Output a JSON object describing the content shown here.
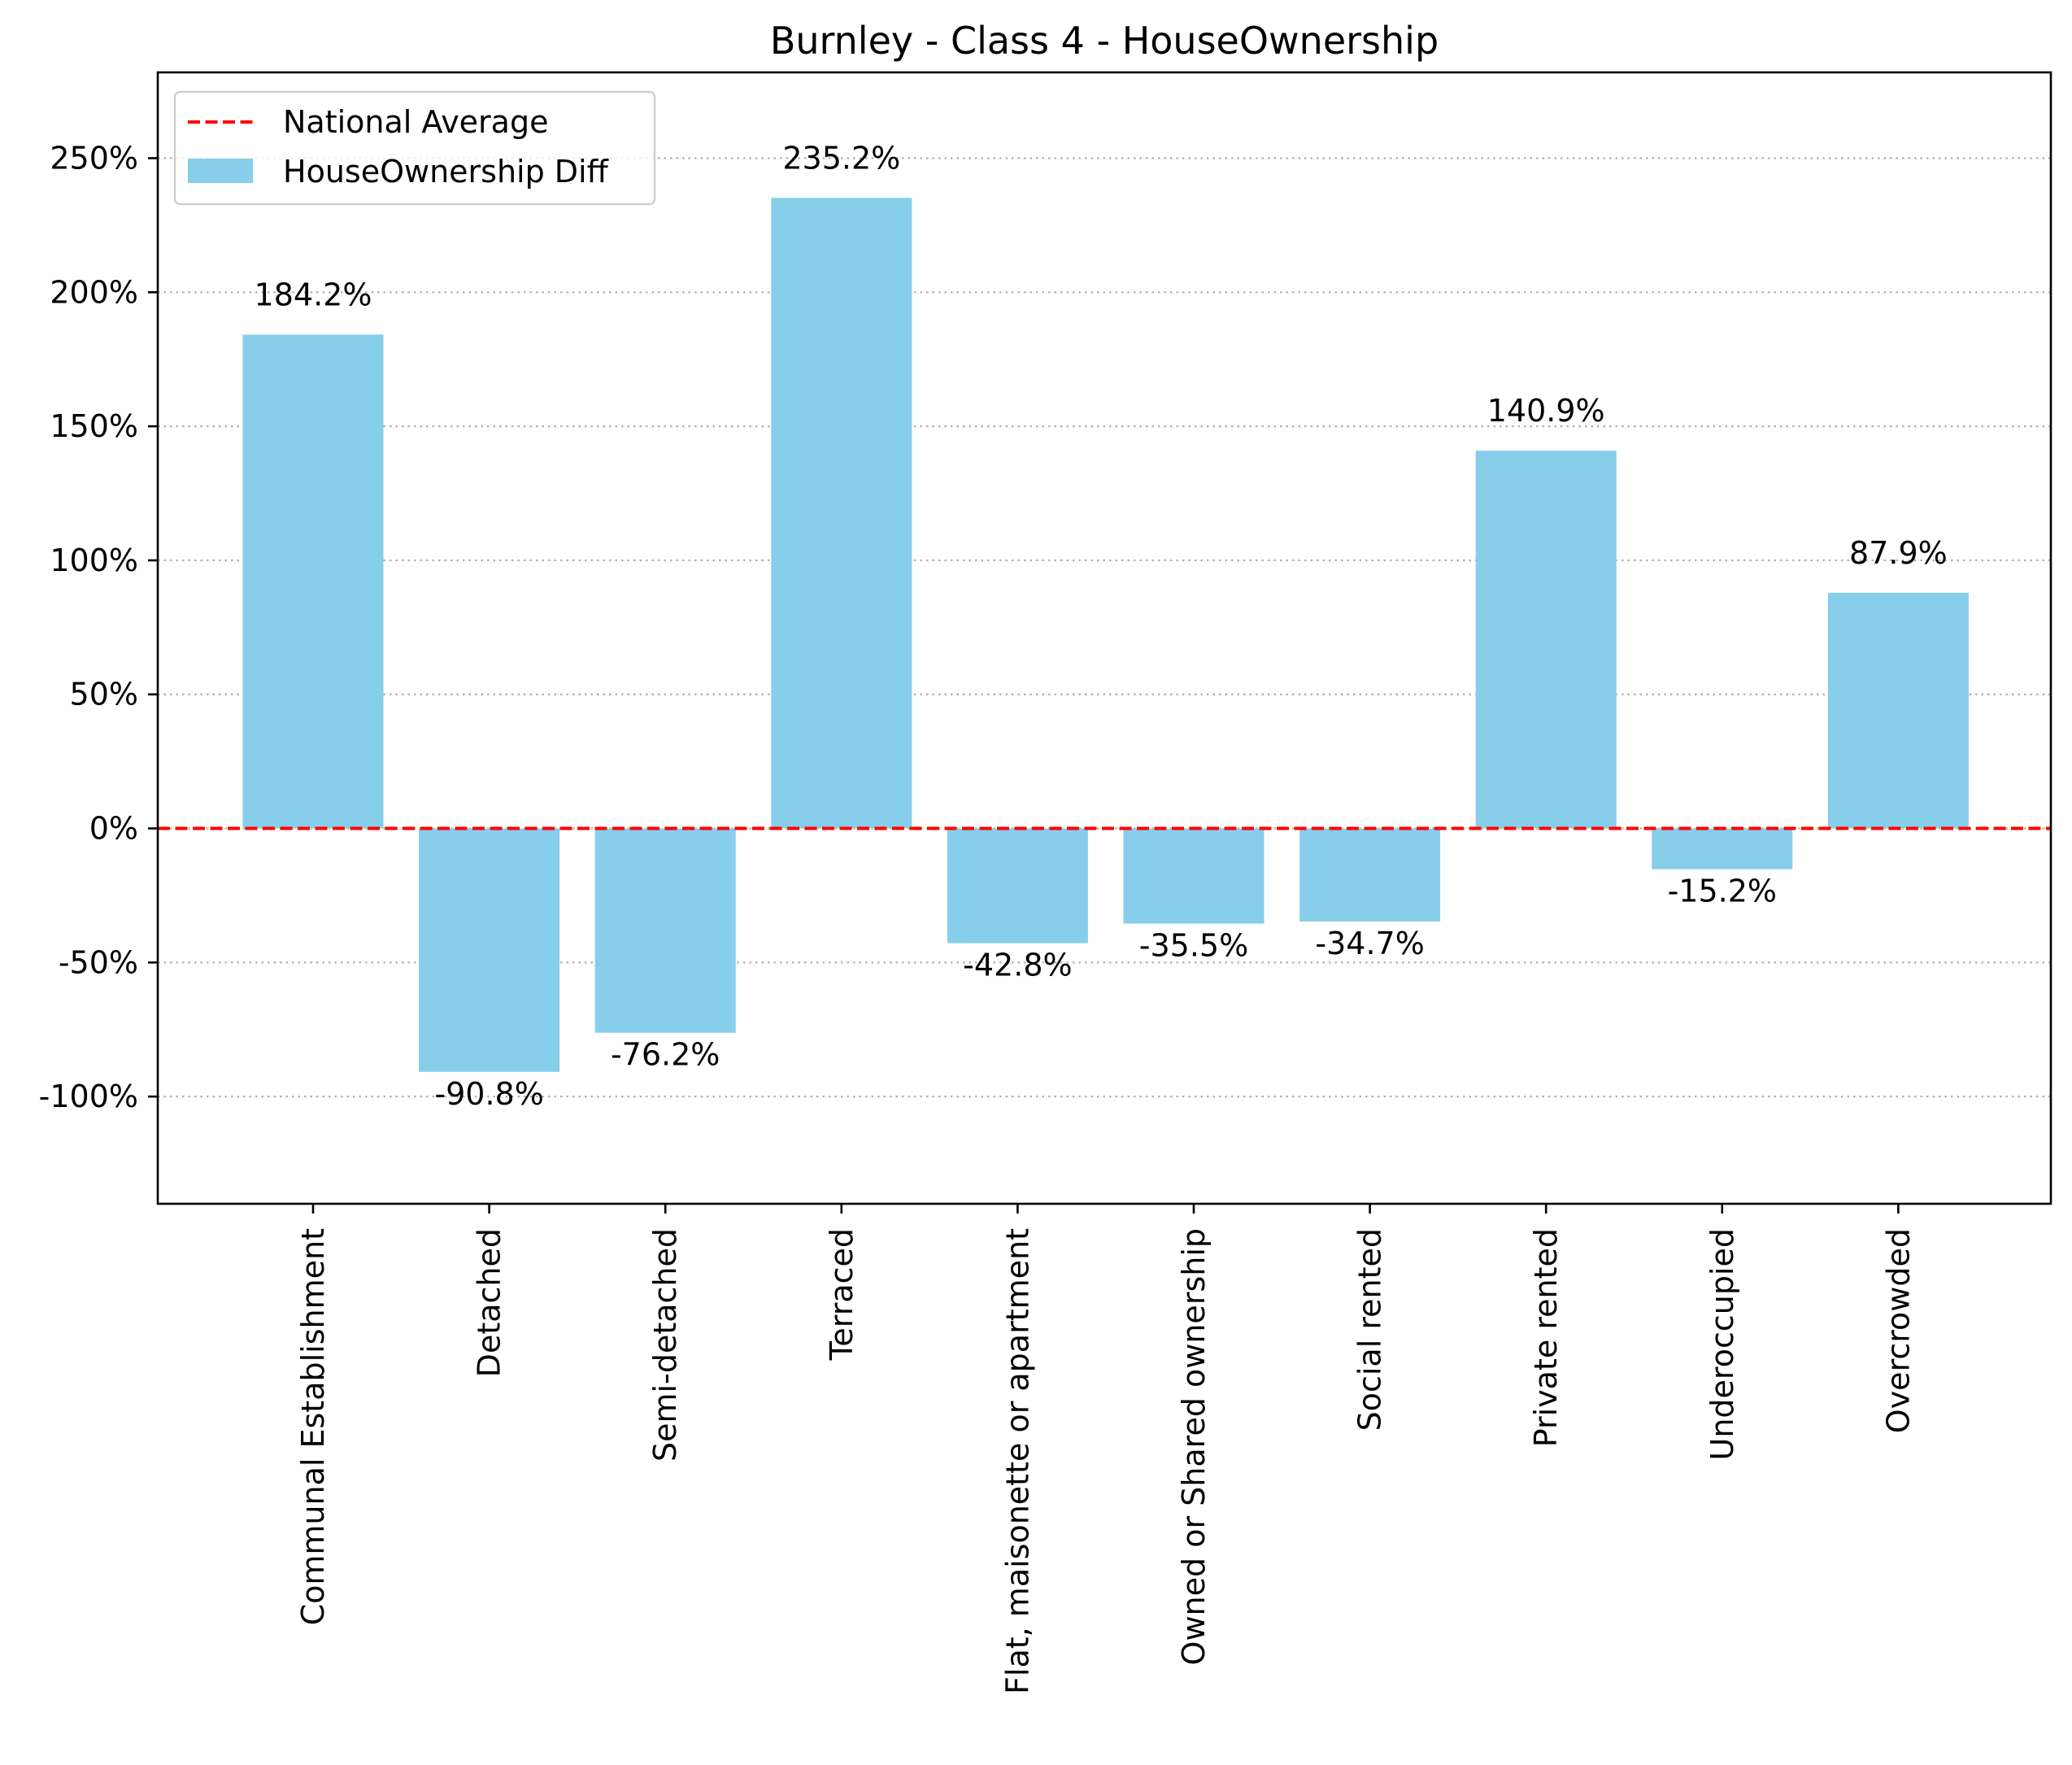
{
  "chart_data": {
    "type": "bar",
    "title": "Burnley - Class 4 - HouseOwnership",
    "xlabel": "",
    "ylabel": "",
    "categories": [
      "Communal Establishment",
      "Detached",
      "Semi-detached",
      "Terraced",
      "Flat, maisonette or apartment",
      "Owned or Shared ownership",
      "Social rented",
      "Private rented",
      "Underoccupied",
      "Overcrowded"
    ],
    "series": [
      {
        "name": "HouseOwnership Diff",
        "color": "#87ceeb",
        "values": [
          184.2,
          -90.8,
          -76.2,
          235.2,
          -42.8,
          -35.5,
          -34.7,
          140.9,
          -15.2,
          87.9
        ]
      }
    ],
    "data_labels": [
      "184.2%",
      "-90.8%",
      "-76.2%",
      "235.2%",
      "-42.8%",
      "-35.5%",
      "-34.7%",
      "140.9%",
      "-15.2%",
      "87.9%"
    ],
    "reference_line": {
      "name": "National Average",
      "value": 0,
      "color": "#ff0000",
      "style": "dashed"
    },
    "ylim": [
      -140,
      282
    ],
    "yticks": [
      -100,
      -50,
      0,
      50,
      100,
      150,
      200,
      250
    ],
    "ytick_labels": [
      "-100%",
      "-50%",
      "0%",
      "50%",
      "100%",
      "150%",
      "200%",
      "250%"
    ],
    "grid": {
      "y": true,
      "x": false,
      "style": "dotted"
    },
    "legend": {
      "position": "top-left",
      "entries": [
        "National Average",
        "HouseOwnership Diff"
      ]
    }
  }
}
